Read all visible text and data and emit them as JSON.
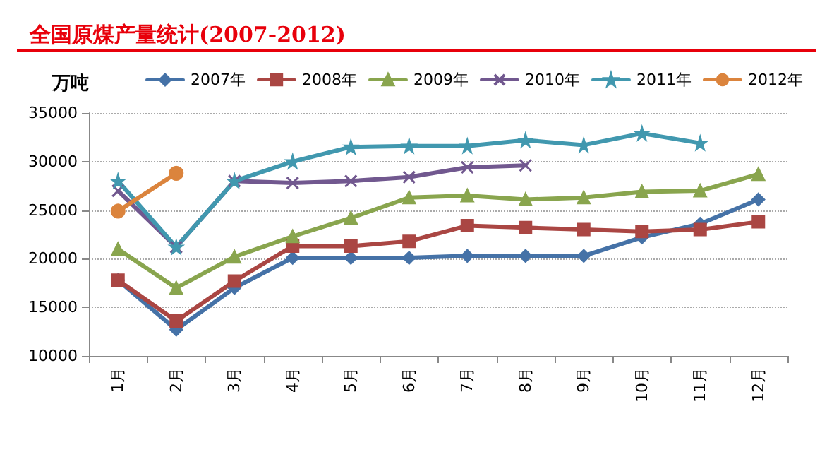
{
  "chart_data": {
    "type": "line",
    "title": "全国原煤产量统计(2007-2012)",
    "ylabel": "万吨",
    "categories": [
      "1月",
      "2月",
      "3月",
      "4月",
      "5月",
      "6月",
      "7月",
      "8月",
      "9月",
      "10月",
      "11月",
      "12月"
    ],
    "series": [
      {
        "name": "2007年",
        "color": "#4572a7",
        "marker": "diamond",
        "values": [
          17800,
          12700,
          17000,
          20100,
          20100,
          20100,
          20300,
          20300,
          20300,
          22200,
          23600,
          26100
        ]
      },
      {
        "name": "2008年",
        "color": "#aa4643",
        "marker": "square",
        "values": [
          17800,
          13600,
          17700,
          21300,
          21300,
          21800,
          23400,
          23200,
          23000,
          22800,
          23000,
          23800
        ]
      },
      {
        "name": "2009年",
        "color": "#89a54e",
        "marker": "triangle",
        "values": [
          21000,
          17000,
          20200,
          22300,
          24200,
          26300,
          26500,
          26100,
          26300,
          26900,
          27000,
          28700
        ]
      },
      {
        "name": "2010年",
        "color": "#71588f",
        "marker": "cross",
        "values": [
          27000,
          21200,
          28000,
          27800,
          28000,
          28400,
          29400,
          29600,
          null,
          null,
          null,
          null
        ]
      },
      {
        "name": "2011年",
        "color": "#4198af",
        "marker": "star",
        "values": [
          28000,
          21200,
          28000,
          30000,
          31500,
          31600,
          31600,
          32200,
          31700,
          32900,
          31900,
          null
        ]
      },
      {
        "name": "2012年",
        "color": "#db843d",
        "marker": "circle",
        "values": [
          24900,
          28800,
          null,
          null,
          null,
          null,
          null,
          null,
          null,
          null,
          null,
          null
        ]
      }
    ],
    "ylim": [
      10000,
      35000
    ],
    "yticks": [
      10000,
      15000,
      20000,
      25000,
      30000,
      35000
    ],
    "grid": "y",
    "legend": "top",
    "line_style": "solid"
  }
}
